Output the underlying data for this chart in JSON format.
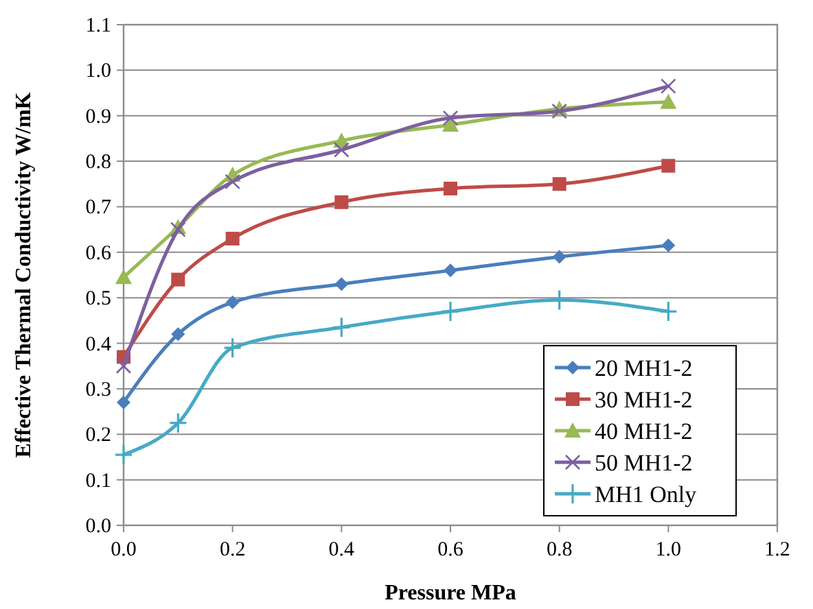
{
  "chart_data": {
    "type": "line",
    "xlabel": "Pressure  MPa",
    "ylabel": "Effective Thermal Conductivity  W/mK",
    "x": [
      0,
      0.1,
      0.2,
      0.4,
      0.6,
      0.8,
      1.0
    ],
    "series": [
      {
        "name": "20 MH1-2",
        "color": "#4a7ebb",
        "marker": "diamond",
        "values": [
          0.27,
          0.42,
          0.49,
          0.53,
          0.56,
          0.59,
          0.615
        ]
      },
      {
        "name": "30 MH1-2",
        "color": "#be4b48",
        "marker": "square",
        "values": [
          0.37,
          0.54,
          0.63,
          0.71,
          0.74,
          0.75,
          0.79
        ]
      },
      {
        "name": "40 MH1-2",
        "color": "#98b954",
        "marker": "triangle",
        "values": [
          0.545,
          0.655,
          0.77,
          0.845,
          0.88,
          0.915,
          0.93
        ]
      },
      {
        "name": "50 MH1-2",
        "color": "#7d5fa0",
        "marker": "cross",
        "values": [
          0.35,
          0.65,
          0.755,
          0.825,
          0.895,
          0.91,
          0.965
        ]
      },
      {
        "name": "MH1 Only",
        "color": "#46aac5",
        "marker": "plus",
        "values": [
          0.155,
          0.225,
          0.39,
          0.435,
          0.47,
          0.495,
          0.47
        ]
      }
    ],
    "xlim": [
      0,
      1.2
    ],
    "xticks": [
      {
        "value": 0,
        "label": "0.0"
      },
      {
        "value": 0.2,
        "label": "0.2"
      },
      {
        "value": 0.4,
        "label": "0.4"
      },
      {
        "value": 0.6,
        "label": "0.6"
      },
      {
        "value": 0.8,
        "label": "0.8"
      },
      {
        "value": 1.0,
        "label": "1.0"
      },
      {
        "value": 1.2,
        "label": "1.2"
      }
    ],
    "ylim": [
      0,
      1.1
    ],
    "yticks": [
      {
        "value": 0,
        "label": "0.0"
      },
      {
        "value": 0.1,
        "label": "0.1"
      },
      {
        "value": 0.2,
        "label": "0.2"
      },
      {
        "value": 0.3,
        "label": "0.3"
      },
      {
        "value": 0.4,
        "label": "0.4"
      },
      {
        "value": 0.5,
        "label": "0.5"
      },
      {
        "value": 0.6,
        "label": "0.6"
      },
      {
        "value": 0.7,
        "label": "0.7"
      },
      {
        "value": 0.8,
        "label": "0.8"
      },
      {
        "value": 0.9,
        "label": "0.9"
      },
      {
        "value": 1.0,
        "label": "1.0"
      },
      {
        "value": 1.1,
        "label": "1.1"
      }
    ],
    "grid": "y",
    "legend": "bottom right",
    "line_style": "solid"
  }
}
